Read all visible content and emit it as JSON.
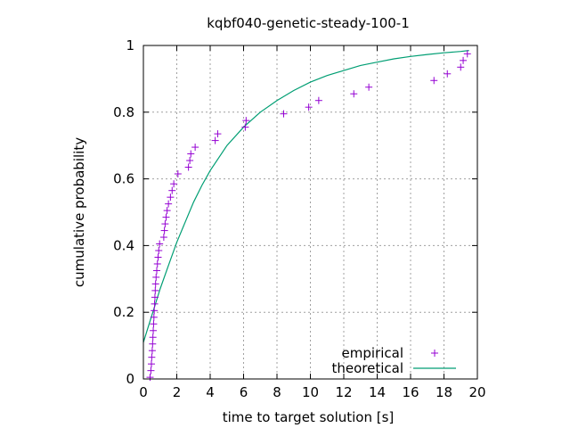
{
  "chart_data": {
    "type": "scatter",
    "title": "kqbf040-genetic-steady-100-1",
    "xlabel": "time to target solution [s]",
    "ylabel": "cumulative probability",
    "xlim": [
      0,
      20
    ],
    "ylim": [
      0,
      1
    ],
    "x_ticks": [
      "0",
      "2",
      "4",
      "6",
      "8",
      "10",
      "12",
      "14",
      "16",
      "18",
      "20"
    ],
    "y_ticks": [
      "0",
      "0.2",
      "0.4",
      "0.6",
      "0.8",
      "1"
    ],
    "grid": true,
    "legend_position": "bottom-right",
    "series": [
      {
        "name": "empirical",
        "style": "points",
        "marker": "+",
        "color": "#9400d3",
        "points": [
          [
            0.4,
            0.005
          ],
          [
            0.45,
            0.025
          ],
          [
            0.48,
            0.045
          ],
          [
            0.5,
            0.065
          ],
          [
            0.53,
            0.085
          ],
          [
            0.55,
            0.105
          ],
          [
            0.57,
            0.125
          ],
          [
            0.59,
            0.145
          ],
          [
            0.61,
            0.165
          ],
          [
            0.63,
            0.185
          ],
          [
            0.65,
            0.205
          ],
          [
            0.67,
            0.225
          ],
          [
            0.69,
            0.245
          ],
          [
            0.71,
            0.265
          ],
          [
            0.73,
            0.285
          ],
          [
            0.76,
            0.305
          ],
          [
            0.8,
            0.325
          ],
          [
            0.84,
            0.345
          ],
          [
            0.88,
            0.365
          ],
          [
            0.92,
            0.385
          ],
          [
            0.97,
            0.405
          ],
          [
            1.22,
            0.425
          ],
          [
            1.26,
            0.445
          ],
          [
            1.3,
            0.465
          ],
          [
            1.36,
            0.485
          ],
          [
            1.42,
            0.505
          ],
          [
            1.5,
            0.525
          ],
          [
            1.62,
            0.545
          ],
          [
            1.72,
            0.565
          ],
          [
            1.82,
            0.585
          ],
          [
            2.07,
            0.615
          ],
          [
            2.7,
            0.635
          ],
          [
            2.78,
            0.655
          ],
          [
            2.84,
            0.675
          ],
          [
            3.1,
            0.695
          ],
          [
            4.3,
            0.715
          ],
          [
            4.45,
            0.735
          ],
          [
            6.1,
            0.755
          ],
          [
            6.15,
            0.775
          ],
          [
            8.4,
            0.795
          ],
          [
            9.9,
            0.815
          ],
          [
            10.5,
            0.835
          ],
          [
            12.6,
            0.855
          ],
          [
            13.5,
            0.875
          ],
          [
            17.4,
            0.895
          ],
          [
            18.2,
            0.915
          ],
          [
            19.0,
            0.935
          ],
          [
            19.15,
            0.955
          ],
          [
            19.4,
            0.975
          ]
        ]
      },
      {
        "name": "theoretical",
        "style": "line",
        "color": "#009e73",
        "points": [
          [
            0.0,
            0.11
          ],
          [
            0.25,
            0.15
          ],
          [
            0.5,
            0.19
          ],
          [
            0.75,
            0.23
          ],
          [
            1.0,
            0.27
          ],
          [
            1.5,
            0.34
          ],
          [
            2.0,
            0.41
          ],
          [
            2.5,
            0.47
          ],
          [
            3.0,
            0.53
          ],
          [
            3.5,
            0.58
          ],
          [
            4.0,
            0.625
          ],
          [
            5.0,
            0.7
          ],
          [
            6.0,
            0.755
          ],
          [
            7.0,
            0.8
          ],
          [
            8.0,
            0.835
          ],
          [
            9.0,
            0.865
          ],
          [
            10.0,
            0.89
          ],
          [
            11.0,
            0.91
          ],
          [
            12.0,
            0.925
          ],
          [
            13.0,
            0.94
          ],
          [
            14.0,
            0.95
          ],
          [
            15.0,
            0.96
          ],
          [
            16.0,
            0.967
          ],
          [
            17.0,
            0.973
          ],
          [
            18.0,
            0.978
          ],
          [
            19.0,
            0.982
          ],
          [
            19.5,
            0.985
          ]
        ]
      }
    ]
  }
}
